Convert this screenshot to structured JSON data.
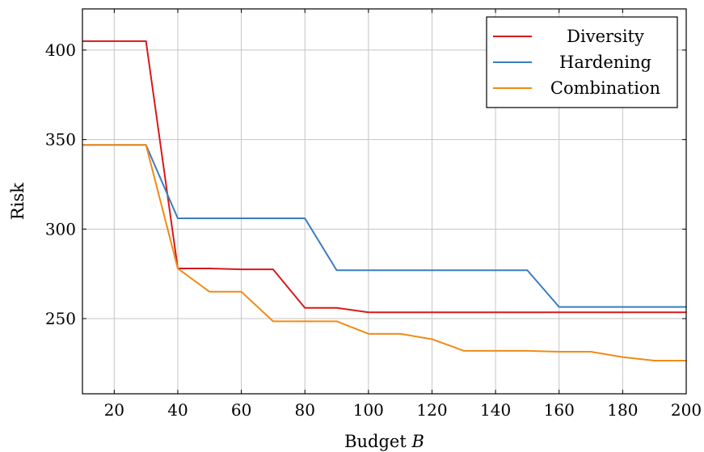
{
  "chart_data": {
    "type": "line",
    "xlabel_text": "Budget ",
    "xlabel_var": "B",
    "ylabel": "Risk",
    "xlim": [
      10,
      200
    ],
    "ylim": [
      208,
      423
    ],
    "x_ticks": [
      20,
      40,
      60,
      80,
      100,
      120,
      140,
      160,
      180,
      200
    ],
    "y_ticks": [
      250,
      300,
      350,
      400
    ],
    "grid": true,
    "legend_position": "top-right",
    "series": [
      {
        "name": "Diversity",
        "color": "#d7191c",
        "x": [
          10,
          20,
          30,
          40,
          50,
          60,
          70,
          80,
          90,
          100,
          110,
          120,
          130,
          140,
          150,
          160,
          170,
          180,
          190,
          200
        ],
        "y": [
          405,
          405,
          405,
          278,
          278,
          277.5,
          277.5,
          256,
          256,
          253.5,
          253.5,
          253.5,
          253.5,
          253.5,
          253.5,
          253.5,
          253.5,
          253.5,
          253.5,
          253.5
        ]
      },
      {
        "name": "Hardening",
        "color": "#3a7dbe",
        "x": [
          10,
          20,
          30,
          40,
          50,
          60,
          70,
          80,
          90,
          100,
          110,
          120,
          130,
          140,
          150,
          160,
          170,
          180,
          190,
          200
        ],
        "y": [
          347,
          347,
          347,
          306,
          306,
          306,
          306,
          306,
          277,
          277,
          277,
          277,
          277,
          277,
          277,
          256.5,
          256.5,
          256.5,
          256.5,
          256.5
        ]
      },
      {
        "name": "Combination",
        "color": "#f28a13",
        "x": [
          10,
          20,
          30,
          40,
          50,
          60,
          70,
          80,
          90,
          100,
          110,
          120,
          130,
          140,
          150,
          160,
          170,
          180,
          190,
          200
        ],
        "y": [
          347,
          347,
          347,
          278,
          265,
          265,
          248.5,
          248.5,
          248.5,
          241.5,
          241.5,
          238.5,
          232,
          232,
          232,
          231.5,
          231.5,
          228.5,
          226.5,
          226.5
        ]
      }
    ]
  }
}
